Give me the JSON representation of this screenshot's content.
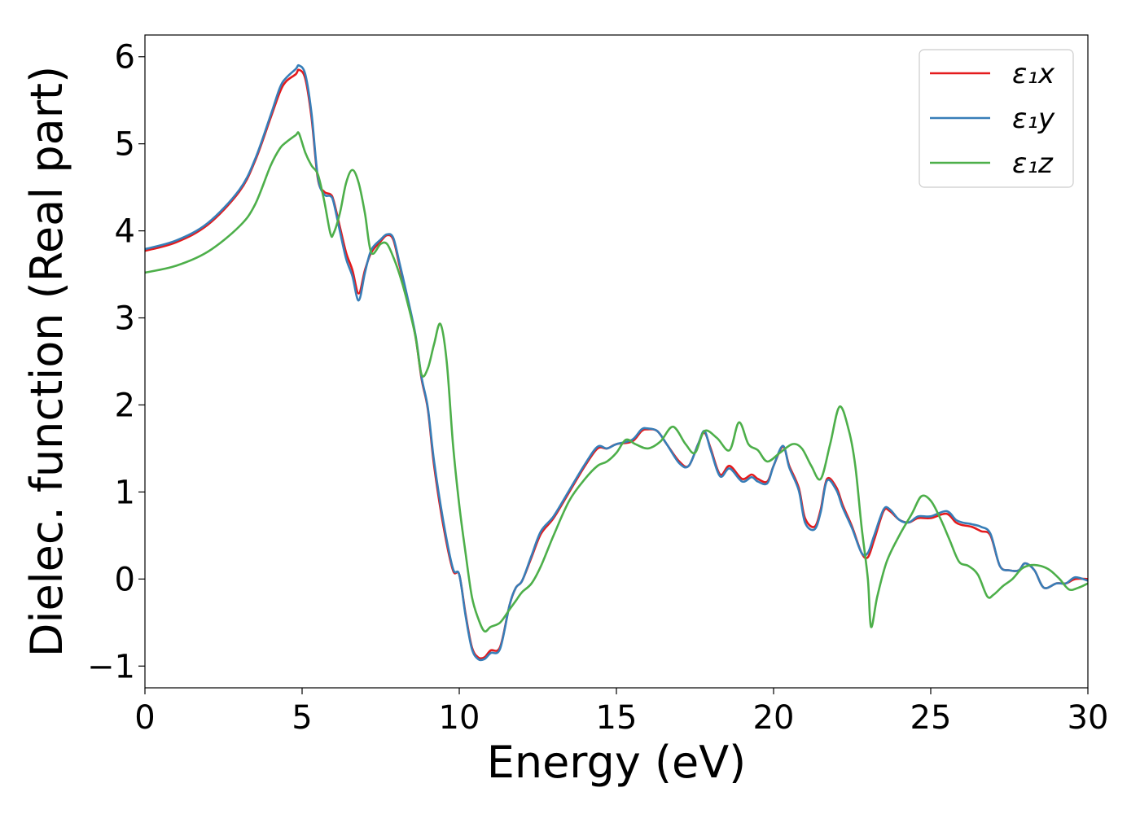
{
  "chart_data": {
    "type": "line",
    "title": "",
    "xlabel": "Energy (eV)",
    "ylabel": "Dielec. function (Real part)",
    "xlim": [
      0,
      30
    ],
    "ylim": [
      -1.25,
      6.25
    ],
    "xticks": [
      0,
      5,
      10,
      15,
      20,
      25,
      30
    ],
    "xtick_labels": [
      "0",
      "5",
      "10",
      "15",
      "20",
      "25",
      "30"
    ],
    "yticks": [
      -1,
      0,
      1,
      2,
      3,
      4,
      5,
      6
    ],
    "ytick_labels": [
      "−1",
      "0",
      "1",
      "2",
      "3",
      "4",
      "5",
      "6"
    ],
    "grid": false,
    "legend_position": "top-right",
    "series": [
      {
        "name": "ε₁x",
        "color": "#e41a1c",
        "x": [
          0,
          1,
          2,
          3,
          3.5,
          4,
          4.3,
          4.5,
          4.8,
          4.9,
          5.1,
          5.3,
          5.5,
          5.7,
          5.9,
          6.0,
          6.2,
          6.4,
          6.6,
          6.8,
          7.0,
          7.2,
          7.5,
          7.7,
          7.9,
          8.1,
          8.3,
          8.6,
          8.8,
          9.0,
          9.2,
          9.5,
          9.8,
          10.0,
          10.2,
          10.4,
          10.6,
          10.8,
          11.0,
          11.3,
          11.6,
          11.8,
          12.0,
          12.3,
          12.6,
          13.0,
          13.5,
          14.0,
          14.4,
          14.7,
          15.0,
          15.5,
          15.8,
          16.0,
          16.3,
          16.6,
          17.0,
          17.3,
          17.6,
          17.8,
          18.0,
          18.3,
          18.6,
          19.0,
          19.3,
          19.5,
          19.8,
          20.0,
          20.3,
          20.5,
          20.8,
          21.0,
          21.3,
          21.5,
          21.7,
          22.0,
          22.2,
          22.5,
          22.8,
          23.0,
          23.2,
          23.5,
          23.7,
          24.0,
          24.3,
          24.6,
          25.0,
          25.5,
          25.8,
          26.0,
          26.3,
          26.6,
          26.9,
          27.2,
          27.5,
          27.8,
          28.0,
          28.3,
          28.6,
          29.0,
          29.3,
          29.6,
          30.0
        ],
        "y": [
          3.77,
          3.87,
          4.07,
          4.45,
          4.8,
          5.3,
          5.6,
          5.72,
          5.8,
          5.85,
          5.75,
          5.3,
          4.6,
          4.45,
          4.42,
          4.35,
          4.05,
          3.75,
          3.55,
          3.28,
          3.55,
          3.75,
          3.88,
          3.95,
          3.9,
          3.6,
          3.3,
          2.8,
          2.3,
          1.95,
          1.3,
          0.6,
          0.1,
          0.05,
          -0.4,
          -0.78,
          -0.9,
          -0.9,
          -0.82,
          -0.78,
          -0.3,
          -0.1,
          -0.02,
          0.25,
          0.52,
          0.7,
          1.0,
          1.3,
          1.5,
          1.5,
          1.55,
          1.58,
          1.7,
          1.72,
          1.7,
          1.55,
          1.35,
          1.3,
          1.55,
          1.68,
          1.5,
          1.2,
          1.3,
          1.15,
          1.2,
          1.15,
          1.12,
          1.3,
          1.52,
          1.3,
          1.05,
          0.7,
          0.6,
          0.8,
          1.15,
          1.05,
          0.85,
          0.6,
          0.3,
          0.25,
          0.45,
          0.78,
          0.78,
          0.68,
          0.65,
          0.7,
          0.7,
          0.75,
          0.65,
          0.62,
          0.6,
          0.55,
          0.5,
          0.15,
          0.1,
          0.1,
          0.18,
          0.1,
          -0.1,
          -0.05,
          -0.05,
          0.0,
          0.0
        ]
      },
      {
        "name": "ε₁y",
        "color": "#377eb8",
        "x": [
          0,
          1,
          2,
          3,
          3.5,
          4,
          4.3,
          4.5,
          4.8,
          4.9,
          5.1,
          5.3,
          5.5,
          5.7,
          5.9,
          6.0,
          6.2,
          6.4,
          6.6,
          6.8,
          7.0,
          7.2,
          7.5,
          7.7,
          7.9,
          8.1,
          8.3,
          8.6,
          8.8,
          9.0,
          9.2,
          9.5,
          9.8,
          10.0,
          10.2,
          10.4,
          10.6,
          10.8,
          11.0,
          11.3,
          11.6,
          11.8,
          12.0,
          12.3,
          12.6,
          13.0,
          13.5,
          14.0,
          14.4,
          14.7,
          15.0,
          15.5,
          15.8,
          16.0,
          16.3,
          16.6,
          17.0,
          17.3,
          17.6,
          17.8,
          18.0,
          18.3,
          18.6,
          19.0,
          19.3,
          19.5,
          19.8,
          20.0,
          20.3,
          20.5,
          20.8,
          21.0,
          21.3,
          21.5,
          21.7,
          22.0,
          22.2,
          22.5,
          22.8,
          23.0,
          23.2,
          23.5,
          23.7,
          24.0,
          24.3,
          24.6,
          25.0,
          25.5,
          25.8,
          26.0,
          26.3,
          26.6,
          26.9,
          27.2,
          27.5,
          27.8,
          28.0,
          28.3,
          28.6,
          29.0,
          29.3,
          29.6,
          30.0
        ],
        "y": [
          3.79,
          3.89,
          4.09,
          4.47,
          4.82,
          5.33,
          5.65,
          5.76,
          5.86,
          5.9,
          5.8,
          5.35,
          4.62,
          4.42,
          4.4,
          4.33,
          4.0,
          3.68,
          3.48,
          3.2,
          3.52,
          3.78,
          3.9,
          3.96,
          3.92,
          3.63,
          3.32,
          2.82,
          2.32,
          1.97,
          1.35,
          0.65,
          0.12,
          0.05,
          -0.42,
          -0.8,
          -0.92,
          -0.92,
          -0.85,
          -0.8,
          -0.3,
          -0.1,
          -0.02,
          0.27,
          0.55,
          0.72,
          1.02,
          1.32,
          1.52,
          1.5,
          1.55,
          1.6,
          1.72,
          1.73,
          1.7,
          1.55,
          1.33,
          1.3,
          1.55,
          1.7,
          1.48,
          1.18,
          1.27,
          1.12,
          1.17,
          1.12,
          1.1,
          1.3,
          1.53,
          1.28,
          1.02,
          0.65,
          0.57,
          0.77,
          1.13,
          1.02,
          0.82,
          0.58,
          0.3,
          0.3,
          0.5,
          0.8,
          0.8,
          0.68,
          0.65,
          0.72,
          0.72,
          0.78,
          0.68,
          0.65,
          0.63,
          0.6,
          0.52,
          0.15,
          0.1,
          0.1,
          0.18,
          0.1,
          -0.1,
          -0.05,
          -0.05,
          0.02,
          -0.02
        ]
      },
      {
        "name": "ε₁z",
        "color": "#4daf4a",
        "x": [
          0,
          1,
          2,
          3,
          3.5,
          4,
          4.3,
          4.5,
          4.8,
          4.9,
          5.1,
          5.3,
          5.5,
          5.7,
          5.9,
          6.0,
          6.2,
          6.4,
          6.6,
          6.8,
          7.0,
          7.2,
          7.5,
          7.7,
          7.9,
          8.1,
          8.3,
          8.6,
          8.8,
          9.0,
          9.2,
          9.4,
          9.6,
          9.8,
          10.0,
          10.2,
          10.4,
          10.6,
          10.8,
          11.0,
          11.3,
          11.6,
          11.8,
          12.0,
          12.3,
          12.6,
          13.0,
          13.5,
          14.0,
          14.4,
          14.7,
          15.0,
          15.3,
          15.6,
          16.0,
          16.4,
          16.8,
          17.2,
          17.5,
          17.8,
          18.2,
          18.6,
          18.9,
          19.2,
          19.5,
          19.8,
          20.2,
          20.6,
          20.9,
          21.2,
          21.5,
          21.8,
          22.1,
          22.4,
          22.6,
          22.8,
          23.0,
          23.1,
          23.3,
          23.6,
          24.0,
          24.4,
          24.7,
          25.0,
          25.3,
          25.6,
          25.9,
          26.2,
          26.5,
          26.8,
          27.0,
          27.3,
          27.6,
          27.9,
          28.2,
          28.5,
          28.8,
          29.1,
          29.4,
          29.7,
          30.0
        ],
        "y": [
          3.52,
          3.6,
          3.76,
          4.05,
          4.3,
          4.75,
          4.95,
          5.02,
          5.1,
          5.12,
          4.9,
          4.75,
          4.65,
          4.35,
          3.97,
          3.97,
          4.2,
          4.55,
          4.7,
          4.55,
          4.2,
          3.75,
          3.85,
          3.85,
          3.7,
          3.5,
          3.25,
          2.8,
          2.35,
          2.42,
          2.7,
          2.93,
          2.5,
          1.55,
          0.85,
          0.3,
          -0.2,
          -0.45,
          -0.6,
          -0.55,
          -0.5,
          -0.35,
          -0.25,
          -0.15,
          -0.05,
          0.15,
          0.5,
          0.9,
          1.15,
          1.3,
          1.35,
          1.45,
          1.6,
          1.55,
          1.5,
          1.58,
          1.75,
          1.55,
          1.45,
          1.7,
          1.62,
          1.48,
          1.8,
          1.55,
          1.48,
          1.35,
          1.45,
          1.55,
          1.5,
          1.3,
          1.15,
          1.55,
          1.98,
          1.7,
          1.3,
          0.6,
          0.0,
          -0.55,
          -0.2,
          0.2,
          0.5,
          0.75,
          0.95,
          0.9,
          0.7,
          0.45,
          0.2,
          0.15,
          0.05,
          -0.2,
          -0.18,
          -0.08,
          0.0,
          0.12,
          0.16,
          0.15,
          0.1,
          0.0,
          -0.12,
          -0.1,
          -0.05
        ]
      }
    ]
  }
}
